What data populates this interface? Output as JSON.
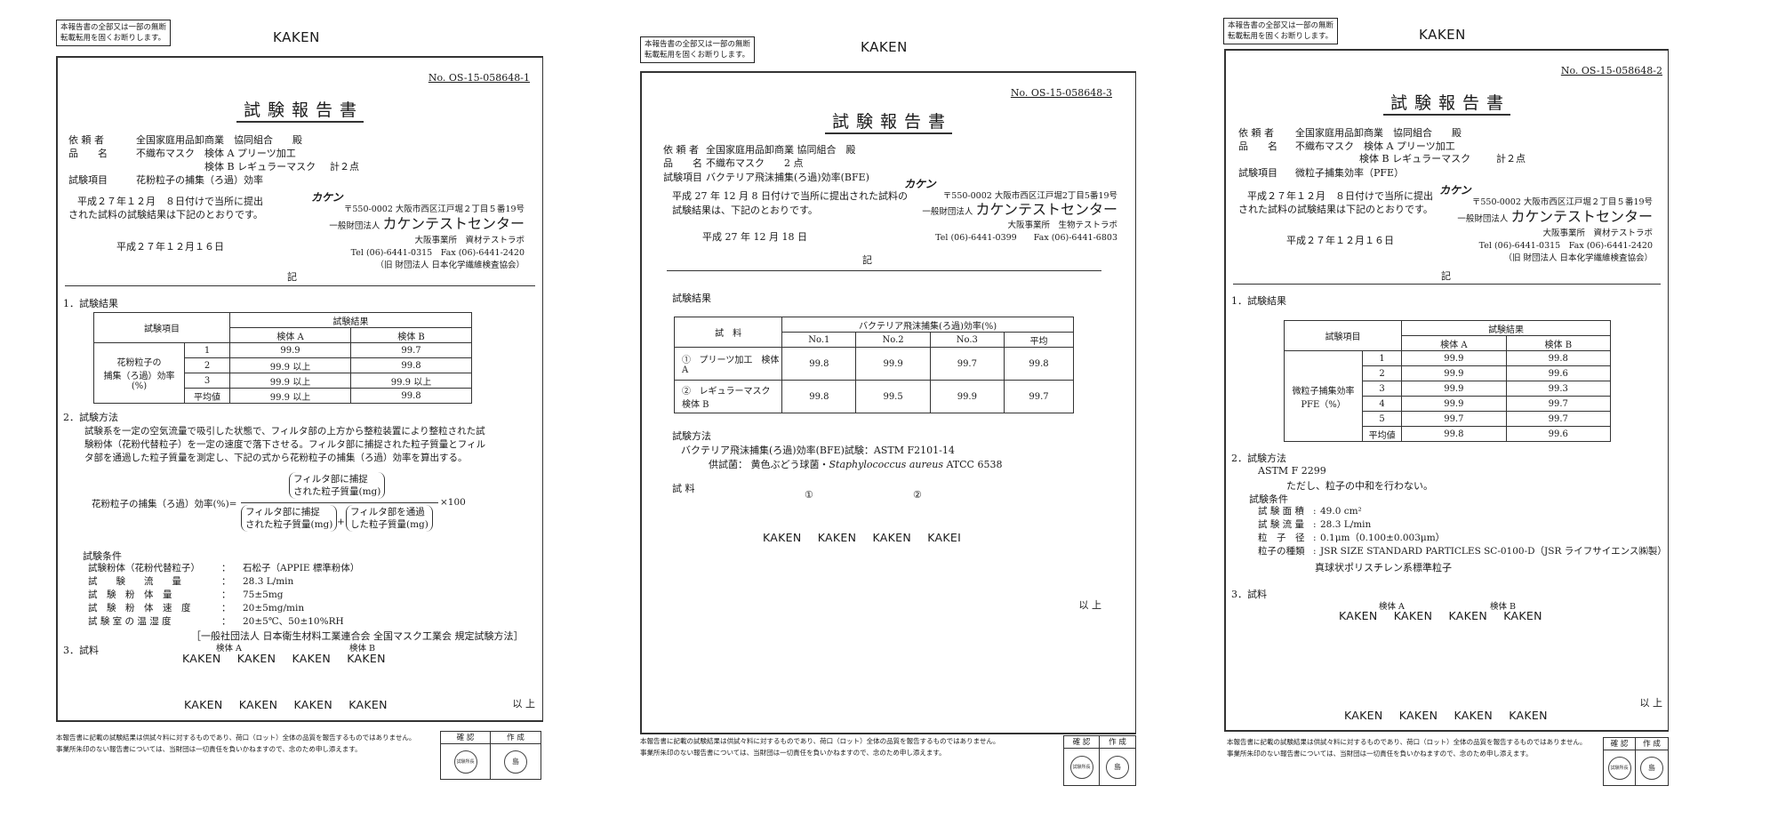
{
  "common": {
    "notice": [
      "本報告書の全部又は一部の無断",
      "転載転用を固くお断りします。"
    ],
    "brand": "KAKEN",
    "title": "試験報告書",
    "ki": "記",
    "ijo": "以 上",
    "footer": [
      "本報告書に記載の試験結果は供試々料に対するものであり、荷口（ロット）全体の品質を報告するものではありません。",
      "事業所朱印のない報告書については、当財団は一切責任を負いかねますので、念のため申し添えます。"
    ],
    "stamp_headers": [
      "確 認",
      "作 成"
    ],
    "seals": [
      "試験所長",
      "島"
    ],
    "kaken_row": "KAKEN KAKEN KAKEN KAKEN"
  },
  "doc1": {
    "report_no": "No. OS-15-058648-1",
    "client_label": "依 頼 者",
    "client": "全国家庭用品卸商業　協同組合　　殿",
    "product_label": "品　　名",
    "product_a": "不織布マスク　検体 A プリーツ加工",
    "product_b": "検体 B レギュラーマスク",
    "count": "計２点",
    "item_label": "試験項目",
    "item": "花粉粒子の捕集（ろ過）効率",
    "intro": [
      "平成２７年１２月　８日付けで当所に提出",
      "された試料の試験結果は下記のとおりです。"
    ],
    "date": "平成２７年１２月１６日",
    "lab": {
      "logo": "カケン",
      "address": "〒550-0002 大阪市西区江戸堀２丁目５番19号",
      "prefix": "一般財団法人",
      "org": "カケンテストセンター",
      "office": "大阪事業所　資材テストラボ",
      "tel": "Tel (06)-6441-0315　Fax (06)-6441-2420",
      "former": "（旧 財団法人 日本化学繊維検査協会）"
    },
    "s1": "1．試験結果",
    "table": {
      "h_item": "試験項目",
      "h_result": "試験結果",
      "h_a": "検体 A",
      "h_b": "検体 B",
      "row_label": [
        "花粉粒子の",
        "捕集（ろ過）効率",
        "(%)"
      ],
      "rows": [
        [
          "1",
          "99.9",
          "99.7"
        ],
        [
          "2",
          "99.9 以上",
          "99.8"
        ],
        [
          "3",
          "99.9 以上",
          "99.9 以上"
        ],
        [
          "平均値",
          "99.9 以上",
          "99.8"
        ]
      ]
    },
    "s2": "2．試験方法",
    "method": [
      "試験系を一定の空気流量で吸引した状態で、フィルタ部の上方から整粒装置により整粒された試",
      "験粉体（花粉代替粒子）を一定の速度で落下させる。フィルタ部に捕捉された粒子質量とフィル",
      "タ部を通過した粒子質量を測定し、下記の式から花粉粒子の捕集（ろ過）効率を算出する。"
    ],
    "formula": {
      "lhs": "花粉粒子の捕集（ろ過）効率(%)=",
      "num": [
        "フィルタ部に捕捉",
        "された粒子質量(mg)"
      ],
      "den1": [
        "フィルタ部に捕捉",
        "された粒子質量(mg)"
      ],
      "plus": "+",
      "den2": [
        "フィルタ部を通過",
        "した粒子質量(mg)"
      ],
      "times": "×100"
    },
    "cond_title": "試験条件",
    "conditions": [
      [
        "試験粉体（花粉代替粒子）",
        "石松子（APPIE 標準粉体）"
      ],
      [
        "試　　験　　流　　量",
        "28.3 L/min"
      ],
      [
        "試　験　粉　体　量",
        "75±5mg"
      ],
      [
        "試　験　粉　体　速　度",
        "20±5mg/min"
      ],
      [
        "試 験 室 の 温 湿 度",
        "20±5℃、50±10%RH"
      ]
    ],
    "method_ref": "［一般社団法人 日本衛生材料工業連合会 全国マスク工業会 規定試験方法］",
    "s3": "3．試料",
    "sample_a": "検体 A",
    "sample_b": "検体 B"
  },
  "doc2": {
    "report_no": "No. OS-15-058648-3",
    "client_label": "依 頼 者",
    "client": "全国家庭用品卸商業 協同組合　殿",
    "product_label": "品　　名",
    "product": "不織布マスク　　2 点",
    "item_label": "試験項目",
    "item": "バクテリア飛沫捕集(ろ過)効率(BFE)",
    "intro": [
      "平成 27 年 12 月 8 日付けで当所に提出された試料の",
      "試験結果は、下記のとおりです。"
    ],
    "date": "平成 27 年 12 月 18 日",
    "lab": {
      "logo": "カケン",
      "address": "〒550-0002 大阪市西区江戸堀2丁目5番19号",
      "prefix": "一般財団法人",
      "org": "カケンテストセンター",
      "office": "大阪事業所　生物テストラボ",
      "tel": "Tel (06)-6441-0399　　Fax (06)-6441-6803"
    },
    "s1": "試験結果",
    "table": {
      "h_sample": "試　料",
      "h_bfe": "バクテリア飛沫捕集(ろ過)効率(%)",
      "cols": [
        "No.1",
        "No.2",
        "No.3",
        "平均"
      ],
      "rows": [
        [
          "①",
          "プリーツ加工　検体 A",
          "99.8",
          "99.9",
          "99.7",
          "99.8"
        ],
        [
          "②",
          "レギュラーマスク　検体 B",
          "99.8",
          "99.5",
          "99.9",
          "99.7"
        ]
      ]
    },
    "s2": "試験方法",
    "method": "バクテリア飛沫捕集(ろ過)効率(BFE)試験：ASTM F2101-14",
    "organism_label": "供試菌：",
    "organism": "黄色ぶどう球菌・",
    "organism_latin": "Staphylococcus aureus",
    "organism_strain": " ATCC 6538",
    "s3": "試 料",
    "mark1": "①",
    "mark2": "②",
    "kaken_row": "KAKEN KAKEN KAKEN KAKEI"
  },
  "doc3": {
    "report_no": "No. OS-15-058648-2",
    "client_label": "依 頼 者",
    "client": "全国家庭用品卸商業　協同組合　　殿",
    "product_label": "品　　名",
    "product_a": "不織布マスク　検体 A プリーツ加工",
    "product_b": "検体 B レギュラーマスク",
    "count": "計２点",
    "item_label": "試験項目",
    "item": "微粒子捕集効率（PFE）",
    "intro": [
      "平成２７年１２月　８日付けで当所に提出",
      "された試料の試験結果は下記のとおりです。"
    ],
    "date": "平成２７年１２月１６日",
    "lab": {
      "logo": "カケン",
      "address": "〒550-0002 大阪市西区江戸堀２丁目５番19号",
      "prefix": "一般財団法人",
      "org": "カケンテストセンター",
      "office": "大阪事業所　資材テストラボ",
      "tel": "Tel (06)-6441-0315　Fax (06)-6441-2420",
      "former": "（旧 財団法人 日本化学繊維検査協会）"
    },
    "s1": "1．試験結果",
    "table": {
      "h_item": "試験項目",
      "h_result": "試験結果",
      "h_a": "検体 A",
      "h_b": "検体 B",
      "row_label": [
        "微粒子捕集効率",
        "PFE（%）"
      ],
      "rows": [
        [
          "1",
          "99.9",
          "99.8"
        ],
        [
          "2",
          "99.9",
          "99.6"
        ],
        [
          "3",
          "99.9",
          "99.3"
        ],
        [
          "4",
          "99.9",
          "99.7"
        ],
        [
          "5",
          "99.7",
          "99.7"
        ],
        [
          "平均値",
          "99.8",
          "99.6"
        ]
      ]
    },
    "s2": "2．試験方法",
    "standard": "ASTM F 2299",
    "note": "ただし、粒子の中和を行わない。",
    "cond_title": "試験条件",
    "conditions": [
      [
        "試 験 面 積",
        "49.0 cm²"
      ],
      [
        "試 験 流 量",
        "28.3 L/min"
      ],
      [
        "粒　子　径",
        "0.1μm（0.100±0.003μm）"
      ],
      [
        "粒子の種類",
        "JSR SIZE STANDARD PARTICLES SC-0100-D（JSR ライフサイエンス㈱製）"
      ]
    ],
    "particle_desc": "真球状ポリスチレン系標準粒子",
    "s3": "3．試料",
    "sample_a": "検体 A",
    "sample_b": "検体 B"
  }
}
